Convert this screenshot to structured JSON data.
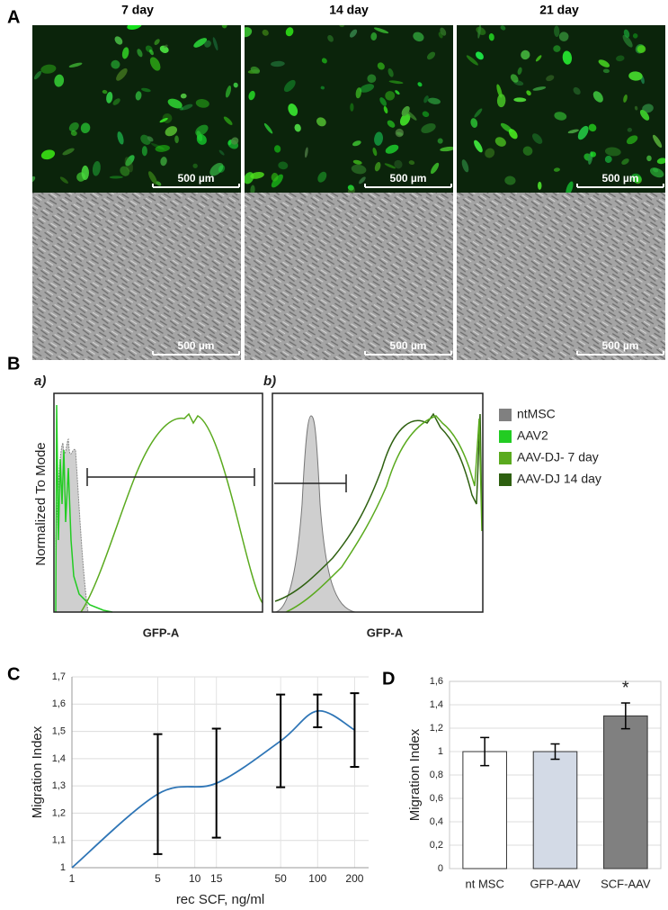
{
  "panel_a": {
    "label": "A",
    "columns": [
      "7 day",
      "14 day",
      "21 day"
    ],
    "scale_bar": "500 µm"
  },
  "panel_b": {
    "label": "B",
    "subpanels": [
      "a)",
      "b)"
    ],
    "y_label": "Normalized To Mode",
    "x_label": "GFP-A",
    "legend": [
      {
        "name": "ntMSC",
        "color": "#808080"
      },
      {
        "name": "AAV2",
        "color": "#22cc22"
      },
      {
        "name": "AAV-DJ- 7 day",
        "color": "#5aaa1e"
      },
      {
        "name": "AAV-DJ 14 day",
        "color": "#2e6010"
      }
    ]
  },
  "chart_data": [
    {
      "type": "line",
      "panel": "C",
      "x_label": "rec SCF, ng/ml",
      "y_label": "Migration Index",
      "log_x": true,
      "x": [
        1,
        5,
        15,
        50,
        100,
        200
      ],
      "series": [
        {
          "color": "#2e75b6",
          "values": [
            1,
            1.27,
            1.31,
            1.465,
            1.575,
            1.505
          ],
          "errors": [
            null,
            0.22,
            0.2,
            0.17,
            0.06,
            0.135
          ]
        }
      ],
      "xlim": [
        1,
        260
      ],
      "xticks": [
        1,
        5,
        10,
        15,
        50,
        100,
        200
      ],
      "ylim": [
        1,
        1.7
      ],
      "yticks": [
        1,
        {
          "value": 1.1,
          "label": "1,1"
        },
        {
          "value": 1.2,
          "label": "1,2"
        },
        {
          "value": 1.3,
          "label": "1,3"
        },
        {
          "value": 1.4,
          "label": "1,4"
        },
        {
          "value": 1.5,
          "label": "1,5"
        },
        {
          "value": 1.6,
          "label": "1,6"
        },
        {
          "value": 1.7,
          "label": "1,7"
        }
      ],
      "grid": true
    },
    {
      "type": "bar",
      "panel": "D",
      "y_label": "Migration Index",
      "categories": [
        "nt MSC",
        "GFP-AAV",
        "SCF-AAV"
      ],
      "values": [
        1,
        1,
        1.305
      ],
      "errors": [
        0.12,
        0.065,
        0.11
      ],
      "colors": [
        "#ffffff",
        "#d3dae6",
        "#808080"
      ],
      "ylim": [
        0,
        1.6
      ],
      "yticks": [
        0,
        {
          "value": 0.2,
          "label": "0,2"
        },
        {
          "value": 0.4,
          "label": "0,4"
        },
        {
          "value": 0.6,
          "label": "0,6"
        },
        {
          "value": 0.8,
          "label": "0,8"
        },
        1,
        {
          "value": 1.2,
          "label": "1,2"
        },
        {
          "value": 1.4,
          "label": "1,4"
        },
        {
          "value": 1.6,
          "label": "1,6"
        }
      ],
      "annotation": {
        "text": "*",
        "category": "SCF-AAV"
      },
      "grid": true
    }
  ]
}
